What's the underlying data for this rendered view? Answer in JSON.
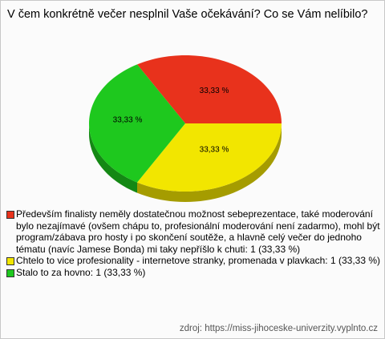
{
  "chart_data": {
    "type": "pie",
    "title": "V čem konkrétně večer nesplnil Vaše očekávání? Co se Vám nelíbilo?",
    "categories": [
      "Především finalisty neměly dostatečnou možnost sebeprezentace, také moderování bylo nezajímavé (ovšem chápu to, profesionální moderování není zadarmo), mohl být program/zábava pro hosty i po skončení soutěže, a hlavně celý večer do jednoho tématu (navíc Jamese Bonda) mi taky nepříšlo k chuti: 1 (33,33 %)",
      "Chtelo to vice profesionality - internetove stranky, promenada v plavkach: 1 (33,33 %)",
      "Stalo to za hovno: 1 (33,33 %)"
    ],
    "values": [
      33.33,
      33.33,
      33.33
    ],
    "value_labels": [
      "33,33 %",
      "33,33 %",
      "33,33 %"
    ],
    "colors": [
      "#e8321c",
      "#f2e600",
      "#1ec81e"
    ],
    "source": "zdroj: https://miss-jihoceske-univerzity.vyplnto.cz"
  }
}
